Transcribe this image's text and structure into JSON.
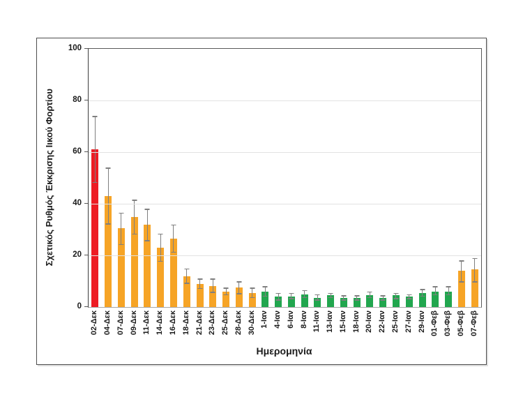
{
  "chart_data": {
    "type": "bar",
    "title": "",
    "xlabel": "Ημερομηνία",
    "ylabel": "Σχετικός Ρυθμός Έκκρισης Ιικού Φορτίου",
    "ylim": [
      0,
      100
    ],
    "yticks": [
      0,
      20,
      40,
      60,
      80,
      100
    ],
    "grid": "horizontal",
    "legend": "none",
    "error_bars": true,
    "categories": [
      "02-Δεκ",
      "04-Δεκ",
      "07-Δεκ",
      "09-Δεκ",
      "11-Δεκ",
      "14-Δεκ",
      "16-Δεκ",
      "18-Δεκ",
      "21-Δεκ",
      "23-Δεκ",
      "25-Δεκ",
      "28-Δεκ",
      "30-Δεκ",
      "1-Ιαν",
      "4-Ιαν",
      "6-Ιαν",
      "8-Ιαν",
      "11-Ιαν",
      "13-Ιαν",
      "15-Ιαν",
      "18-Ιαν",
      "20-Ιαν",
      "22-Ιαν",
      "25-Ιαν",
      "27-Ιαν",
      "29-Ιαν",
      "01-Φεβ",
      "03-Φεβ",
      "05-Φεβ",
      "07-Φεβ"
    ],
    "values": [
      61,
      43,
      30.5,
      35,
      32,
      23,
      26.5,
      12,
      9,
      8,
      6,
      7.5,
      5.5,
      6,
      4,
      4,
      5,
      3.5,
      4.5,
      3.5,
      3.5,
      4.5,
      3.5,
      4.5,
      4,
      5.5,
      6,
      6,
      14,
      14.5
    ],
    "error_low": [
      48,
      32,
      24,
      28,
      25.5,
      17.5,
      21,
      9,
      7,
      5.5,
      4.5,
      5,
      3.5,
      4,
      2.5,
      3,
      3.5,
      2.5,
      3.5,
      2.5,
      2.5,
      3.5,
      2.5,
      3,
      3,
      4,
      4.5,
      4.5,
      9.5,
      9.5
    ],
    "error_high": [
      74,
      54,
      36.5,
      41.5,
      38,
      28.5,
      32,
      15,
      11,
      11,
      7.5,
      10,
      7.5,
      8,
      5.5,
      5.5,
      6.5,
      5,
      5.5,
      4.5,
      4.5,
      6,
      4.5,
      5.5,
      5,
      7,
      8,
      8,
      18,
      19
    ],
    "bar_color_keys": [
      "red",
      "orange",
      "orange",
      "orange",
      "orange",
      "orange",
      "orange",
      "orange",
      "orange",
      "orange",
      "orange",
      "orange",
      "orange",
      "green",
      "green",
      "green",
      "green",
      "green",
      "green",
      "green",
      "green",
      "green",
      "green",
      "green",
      "green",
      "green",
      "green",
      "green",
      "orange",
      "orange"
    ],
    "colors": {
      "red": "#ED1C24",
      "orange": "#F6A426",
      "green": "#21A64E",
      "error_bar": "#7F7F7F",
      "gridline": "#E2E2E2",
      "axis": "#595959"
    }
  }
}
